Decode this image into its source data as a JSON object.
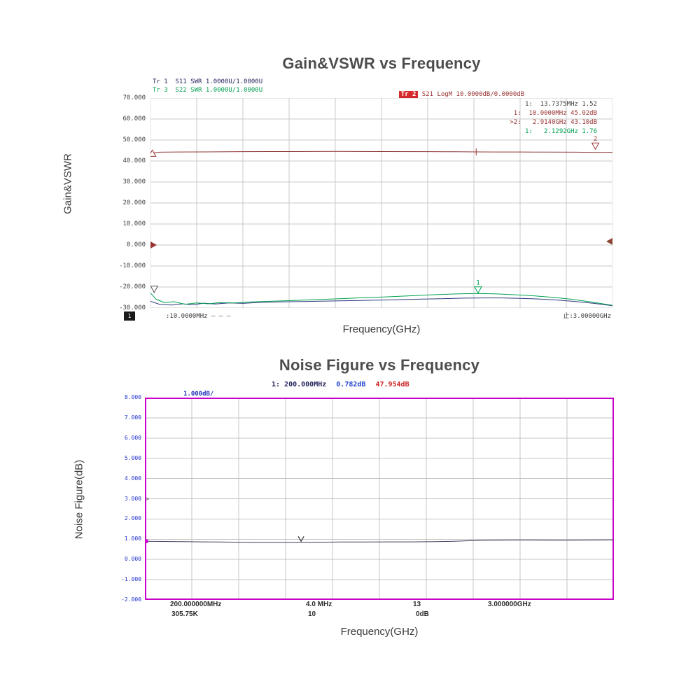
{
  "gain_section": {
    "title": "Gain&VSWR vs Frequency",
    "xlabel": "Frequency(GHz)",
    "ylabel": "Gain&VSWR",
    "legend_left": [
      {
        "text": "Tr 1  S11 SWR 1.0000U/1.0000U",
        "color": "#27275f"
      },
      {
        "text": "Tr 3  S22 SWR 1.0000U/1.0000U",
        "color": "#00a050"
      }
    ],
    "legend_right": {
      "tag": "Tr 2",
      "tag_bg": "#d52b2b",
      "tag_color": "#ffffff",
      "text": " S21 LogM 10.0000dB/0.0000dB",
      "color": "#993333"
    },
    "readouts": [
      {
        "text": "1:  13.7375MHz 1.52",
        "color": "#3c3c3c"
      },
      {
        "text": "1:  10.0000MHz 45.02dB",
        "color": "#993333"
      },
      {
        "text": ">2:   2.9140GHz 43.10dB",
        "color": "#993333"
      },
      {
        "text": "1:   2.1292GHz 1.76",
        "color": "#00a050"
      }
    ],
    "footer": {
      "box_label": "1",
      "left": ":10.0000MHz — — —",
      "right": "止:3.00000GHz"
    }
  },
  "noise_section": {
    "title": "Noise Figure vs Frequency",
    "xlabel": "Frequency(GHz)",
    "ylabel": "Noise Figure(dB)",
    "header": {
      "marker": "1: 200.000MHz",
      "value_db": "0.782dB",
      "value2": "47.954dB"
    },
    "scale_label": "1.000dB/",
    "xticks_row1": [
      "200.000000MHz",
      "4.0 MHz",
      "13",
      "3.000000GHz"
    ],
    "xticks_row2": [
      "305.75K",
      "10",
      "0dB"
    ]
  },
  "chart_data": [
    {
      "type": "line",
      "title": "Gain&VSWR vs Frequency",
      "xlabel": "Frequency(GHz)",
      "ylabel": "Gain&VSWR",
      "x_start_label": "10.0000MHz",
      "x_stop_label": "3.00000GHz",
      "ylim": [
        -30,
        70
      ],
      "yticks": [
        "70.000",
        "60.000",
        "50.000",
        "40.000",
        "30.000",
        "20.000",
        "10.000",
        "0.000",
        "-10.000",
        "-20.000",
        "-30.000"
      ],
      "grid_rows": 10,
      "grid_cols": 10,
      "grid_color": "#c8c8c8",
      "legend_position": "top",
      "series": [
        {
          "name": "S21 LogM (gain dB)",
          "key": "s21-gain-trace",
          "color": "#8e3636",
          "x": [
            0,
            0.02,
            0.06,
            0.12,
            0.2,
            0.3,
            0.4,
            0.5,
            0.6,
            0.66,
            0.705,
            0.75,
            0.8,
            0.86,
            0.92,
            0.97,
            1.0
          ],
          "y": [
            43.8,
            44.2,
            44.3,
            44.35,
            44.45,
            44.5,
            44.55,
            44.5,
            44.45,
            44.4,
            44.35,
            44.3,
            44.3,
            44.25,
            44.2,
            44.1,
            44.15
          ]
        },
        {
          "name": "S11 SWR",
          "key": "s11-swr-trace",
          "color": "#2f3a7d",
          "x": [
            0,
            0.02,
            0.045,
            0.07,
            0.09,
            0.115,
            0.14,
            0.17,
            0.2,
            0.24,
            0.28,
            0.33,
            0.38,
            0.43,
            0.48,
            0.53,
            0.58,
            0.63,
            0.68,
            0.72,
            0.76,
            0.8,
            0.84,
            0.88,
            0.92,
            0.96,
            1.0
          ],
          "y": [
            -26.8,
            -28.3,
            -28.6,
            -28.0,
            -28.5,
            -27.7,
            -28.1,
            -27.6,
            -27.8,
            -27.3,
            -27.1,
            -26.9,
            -26.7,
            -26.5,
            -26.3,
            -26.1,
            -25.8,
            -25.6,
            -25.3,
            -25.2,
            -25.2,
            -25.4,
            -25.7,
            -26.2,
            -26.9,
            -27.8,
            -28.9
          ]
        },
        {
          "name": "S22 SWR",
          "key": "s22-swr-trace",
          "color": "#00a050",
          "x": [
            0,
            0.012,
            0.03,
            0.05,
            0.075,
            0.1,
            0.125,
            0.15,
            0.18,
            0.22,
            0.26,
            0.31,
            0.36,
            0.41,
            0.46,
            0.51,
            0.56,
            0.61,
            0.66,
            0.709,
            0.75,
            0.79,
            0.83,
            0.87,
            0.91,
            0.95,
            1.0
          ],
          "y": [
            -22.8,
            -25.8,
            -27.4,
            -27.0,
            -28.2,
            -27.6,
            -28.0,
            -27.4,
            -27.6,
            -27.1,
            -26.8,
            -26.4,
            -26.0,
            -25.6,
            -25.1,
            -24.7,
            -24.2,
            -23.7,
            -23.3,
            -23.1,
            -23.3,
            -23.7,
            -24.2,
            -24.9,
            -25.8,
            -27.0,
            -28.7
          ]
        }
      ],
      "markers": [
        {
          "type": "tri-up-open",
          "x": 0.004,
          "y": 45.2,
          "color": "#993333"
        },
        {
          "type": "tick",
          "x": 0.705,
          "y": 44.35,
          "color": "#993333"
        },
        {
          "type": "tri-down-open",
          "x": 0.963,
          "y": 45.6,
          "color": "#993333",
          "label": "2"
        },
        {
          "type": "tri-right",
          "x": 0.0,
          "y": 0.0,
          "color": "#993333"
        },
        {
          "type": "tri-left",
          "x": 1.0,
          "y": 1.7,
          "color": "#8a4535"
        },
        {
          "type": "tri-down-open",
          "x": 0.008,
          "y": -22.6,
          "color": "#555555"
        },
        {
          "type": "tri-down-open",
          "x": 0.709,
          "y": -22.9,
          "color": "#00a050",
          "label": "1"
        }
      ]
    },
    {
      "type": "line",
      "title": "Noise Figure vs Frequency",
      "xlabel": "Frequency(GHz)",
      "ylabel": "Noise Figure(dB)",
      "scale_per_div": "1.000dB/",
      "marker_readout": {
        "marker": "1: 200.000MHz",
        "noise_figure": "0.782dB",
        "gain": "47.954dB"
      },
      "ylim": [
        -2,
        8
      ],
      "yticks": [
        "8.000",
        "7.000",
        "6.000",
        "5.000",
        "4.000",
        "3.000",
        "2.000",
        "1.000",
        "0.000",
        "-1.000",
        "-2.000"
      ],
      "grid_rows": 10,
      "grid_cols": 10,
      "grid_color": "#c4c4c4",
      "border_color": "#c800c8",
      "series": [
        {
          "name": "Noise Figure",
          "key": "noise-figure-trace",
          "color": "#3c3c5c",
          "x": [
            0,
            0.04,
            0.08,
            0.12,
            0.16,
            0.2,
            0.25,
            0.3,
            0.333,
            0.37,
            0.42,
            0.47,
            0.52,
            0.57,
            0.62,
            0.66,
            0.7,
            0.74,
            0.78,
            0.82,
            0.86,
            0.9,
            0.95,
            1.0
          ],
          "y": [
            0.9,
            0.89,
            0.88,
            0.87,
            0.86,
            0.85,
            0.84,
            0.84,
            0.85,
            0.85,
            0.86,
            0.86,
            0.87,
            0.87,
            0.88,
            0.9,
            0.93,
            0.95,
            0.96,
            0.96,
            0.95,
            0.95,
            0.96,
            0.97
          ]
        }
      ],
      "markers": [
        {
          "type": "dot",
          "x": 0.003,
          "y": 0.9,
          "color": "#cc00cc"
        },
        {
          "type": "varrow",
          "x": 0.333,
          "y": 1.0,
          "color": "#333333"
        },
        {
          "type": "caret",
          "x": 0.0,
          "y": 3.0,
          "color": "#555555"
        }
      ]
    }
  ]
}
